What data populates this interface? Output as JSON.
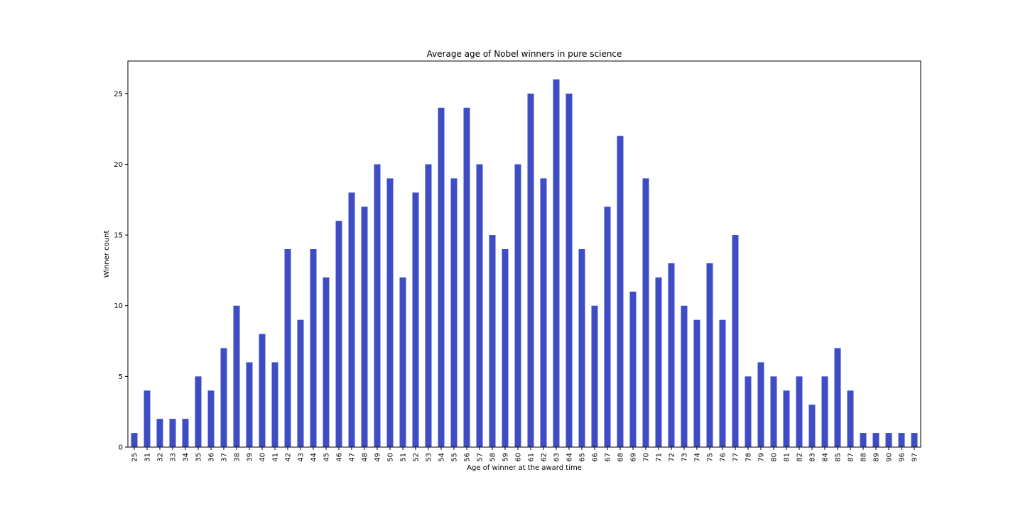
{
  "chart_data": {
    "type": "bar",
    "title": "Average age of Nobel winners in pure science",
    "xlabel": "Age of winner at the award time",
    "ylabel": "Winner count",
    "categories": [
      "25",
      "31",
      "32",
      "33",
      "34",
      "35",
      "36",
      "37",
      "38",
      "39",
      "40",
      "41",
      "42",
      "43",
      "44",
      "45",
      "46",
      "47",
      "48",
      "49",
      "50",
      "51",
      "52",
      "53",
      "54",
      "55",
      "56",
      "57",
      "58",
      "59",
      "60",
      "61",
      "62",
      "63",
      "64",
      "65",
      "66",
      "67",
      "68",
      "69",
      "70",
      "71",
      "72",
      "73",
      "74",
      "75",
      "76",
      "77",
      "78",
      "79",
      "80",
      "81",
      "82",
      "83",
      "84",
      "85",
      "87",
      "88",
      "89",
      "90",
      "96",
      "97"
    ],
    "values": [
      1,
      4,
      2,
      2,
      2,
      5,
      4,
      7,
      10,
      6,
      8,
      6,
      14,
      9,
      14,
      12,
      16,
      18,
      17,
      20,
      19,
      12,
      18,
      20,
      24,
      19,
      24,
      20,
      15,
      14,
      20,
      25,
      19,
      26,
      25,
      14,
      10,
      17,
      22,
      11,
      19,
      12,
      13,
      10,
      9,
      13,
      9,
      15,
      5,
      6,
      5,
      4,
      5,
      3,
      5,
      7,
      4,
      1,
      1,
      1,
      1,
      1
    ],
    "ylim": [
      0,
      27.3
    ],
    "yticks": [
      0,
      5,
      10,
      15,
      20,
      25
    ],
    "bar_color": "#3f4dc5",
    "grid": false,
    "legend": "none"
  }
}
